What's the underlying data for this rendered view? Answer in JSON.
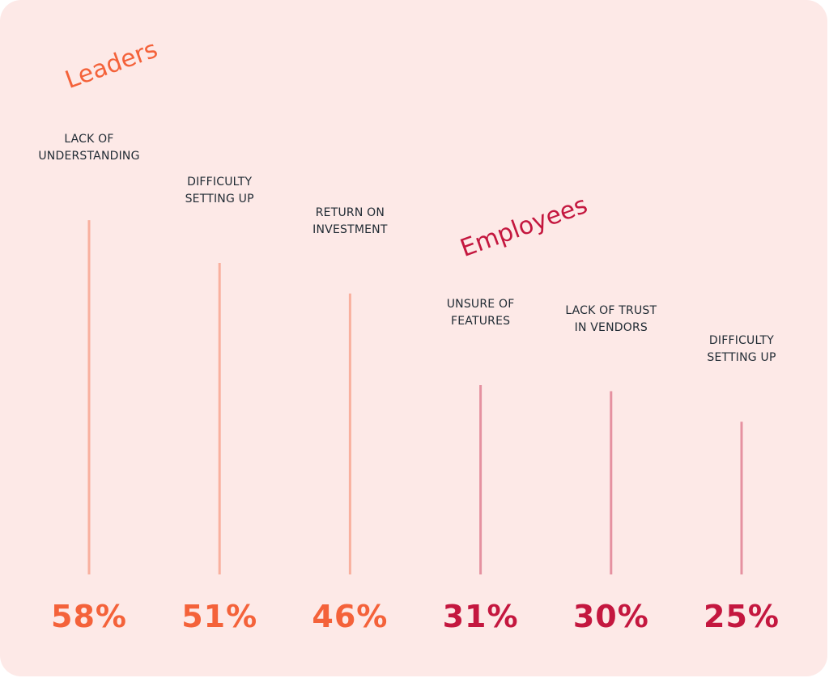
{
  "chart_data": {
    "type": "bar",
    "categories": [
      "LACK OF\nUNDERSTANDING",
      "DIFFICULTY\nSETTING UP",
      "RETURN ON\nINVESTMENT",
      "UNSURE OF\nFEATURES",
      "LACK OF TRUST\nIN VENDORS",
      "DIFFICULTY\nSETTING UP"
    ],
    "series": [
      {
        "name": "Leaders",
        "color": "#f4623a",
        "values": [
          58,
          51,
          46,
          null,
          null,
          null
        ],
        "value_labels": [
          "58%",
          "51%",
          "46%",
          null,
          null,
          null
        ]
      },
      {
        "name": "Employees",
        "color": "#c4173f",
        "values": [
          null,
          null,
          null,
          31,
          30,
          25
        ],
        "value_labels": [
          null,
          null,
          null,
          "31%",
          "30%",
          "25%"
        ]
      }
    ]
  }
}
